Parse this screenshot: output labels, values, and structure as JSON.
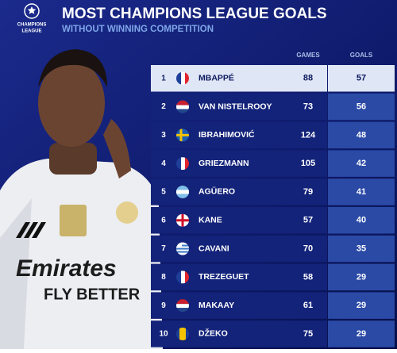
{
  "logo": {
    "lines": [
      "CHAMPIONS",
      "LEAGUE"
    ]
  },
  "header": {
    "title": "MOST CHAMPIONS LEAGUE GOALS",
    "subtitle": "WITHOUT WINNING COMPETITION"
  },
  "table": {
    "columns": [
      "GAMES",
      "GOALS"
    ],
    "rows": [
      [
        1,
        "MBAPPÉ",
        88,
        57
      ],
      [
        2,
        "VAN NISTELROOY",
        73,
        56
      ],
      [
        3,
        "IBRAHIMOVIĆ",
        124,
        48
      ],
      [
        4,
        "GRIEZMANN",
        105,
        42
      ],
      [
        5,
        "AGÜERO",
        79,
        41
      ],
      [
        6,
        "KANE",
        57,
        40
      ],
      [
        7,
        "CAVANI",
        70,
        35
      ],
      [
        8,
        "TREZEGUET",
        58,
        29
      ],
      [
        9,
        "MAKAAY",
        61,
        29
      ],
      [
        10,
        "DŽEKO",
        75,
        29
      ]
    ]
  }
}
